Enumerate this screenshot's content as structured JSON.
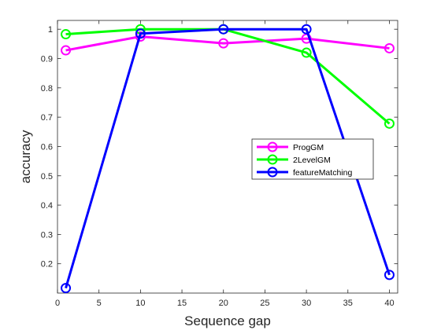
{
  "chart_data": {
    "type": "line",
    "xlabel": "Sequence gap",
    "ylabel": "accuracy",
    "x": [
      1,
      10,
      20,
      30,
      40
    ],
    "xlim": [
      0,
      41
    ],
    "ylim": [
      0.1,
      1.03
    ],
    "xticks": [
      0,
      5,
      10,
      15,
      20,
      25,
      30,
      35,
      40
    ],
    "yticks": [
      0.2,
      0.3,
      0.4,
      0.5,
      0.6,
      0.7,
      0.8,
      0.9,
      1
    ],
    "xtick_labels": [
      "0",
      "5",
      "10",
      "15",
      "20",
      "25",
      "30",
      "35",
      "40"
    ],
    "ytick_labels": [
      "0.2",
      "0.3",
      "0.4",
      "0.5",
      "0.6",
      "0.7",
      "0.8",
      "0.9",
      "1"
    ],
    "grid": false,
    "legend_position": "center-right",
    "marker": "circle",
    "series": [
      {
        "name": "ProgGM",
        "color": "#ff00ff",
        "values": [
          0.928,
          0.975,
          0.952,
          0.968,
          0.935
        ]
      },
      {
        "name": "2LevelGM",
        "color": "#00ff00",
        "values": [
          0.983,
          1.0,
          1.0,
          0.92,
          0.678
        ]
      },
      {
        "name": "featureMatching",
        "color": "#0000ff",
        "values": [
          0.117,
          0.985,
          1.0,
          1.0,
          0.162
        ]
      }
    ]
  }
}
